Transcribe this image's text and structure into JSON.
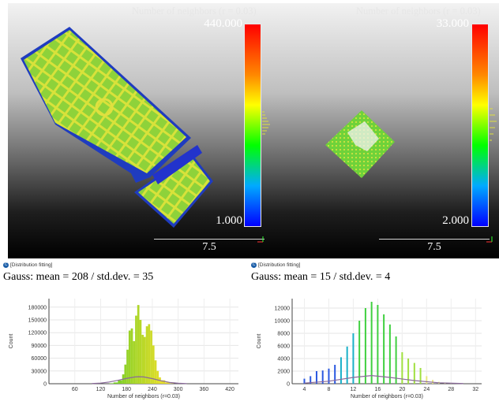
{
  "viewer": {
    "left": {
      "title": "Number of neighbors (r = 0.03)",
      "max_label": "440.000",
      "min_label": "1.000",
      "scale_label": "7.5"
    },
    "right": {
      "title": "Number of neighbors (r = 0.03)",
      "max_label": "33.000",
      "min_label": "2.000",
      "scale_label": "7.5"
    }
  },
  "panels": [
    {
      "header": "[Distribution fitting]",
      "logo_icon": "cloudcompare-logo-icon",
      "gauss_text": "Gauss: mean = 208 / std.dev. = 35"
    },
    {
      "header": "[Distribution fitting]",
      "logo_icon": "cloudcompare-logo-icon",
      "gauss_text": "Gauss: mean = 15 / std.dev. = 4"
    }
  ],
  "chart_data": [
    {
      "type": "area",
      "xlabel": "Number of neighbors (r=0.03)",
      "ylabel": "Count",
      "xlim": [
        0,
        440
      ],
      "ylim": [
        0,
        200000
      ],
      "xticks": [
        "60",
        "120",
        "180",
        "240",
        "300",
        "360",
        "420"
      ],
      "xtick_values": [
        60,
        120,
        180,
        240,
        300,
        360,
        420
      ],
      "yticks": [
        "0",
        "30000",
        "60000",
        "90000",
        "120000",
        "150000",
        "180000"
      ],
      "ytick_values": [
        0,
        30000,
        60000,
        90000,
        120000,
        150000,
        180000
      ],
      "grid": true,
      "series": [
        {
          "x": [
            140,
            150,
            160,
            170,
            175,
            180,
            185,
            190,
            195,
            200,
            205,
            210,
            215,
            220,
            225,
            230,
            235,
            240,
            245,
            250,
            255,
            260,
            270,
            280
          ],
          "values": [
            1000,
            3000,
            8000,
            22000,
            45000,
            80000,
            125000,
            130000,
            100000,
            160000,
            185000,
            150000,
            115000,
            110000,
            135000,
            140000,
            125000,
            90000,
            55000,
            30000,
            15000,
            8000,
            3000,
            500
          ]
        },
        {
          "x": [
            100,
            120,
            140,
            160,
            180,
            200,
            208,
            220,
            240,
            260,
            280,
            300,
            320
          ],
          "values": [
            500,
            1500,
            4000,
            8000,
            12500,
            16000,
            16500,
            16000,
            12000,
            7000,
            3000,
            1200,
            300
          ]
        }
      ]
    },
    {
      "type": "bar",
      "xlabel": "Number of neighbors (r=0.03)",
      "ylabel": "Count",
      "xlim": [
        2,
        33
      ],
      "ylim": [
        0,
        13500
      ],
      "xticks": [
        "4",
        "8",
        "12",
        "16",
        "20",
        "24",
        "28",
        "32"
      ],
      "xtick_values": [
        4,
        8,
        12,
        16,
        20,
        24,
        28,
        32
      ],
      "yticks": [
        "0",
        "2000",
        "4000",
        "6000",
        "8000",
        "10000",
        "12000"
      ],
      "ytick_values": [
        0,
        2000,
        4000,
        6000,
        8000,
        10000,
        12000
      ],
      "grid": true,
      "series": [
        {
          "x": [
            4,
            5,
            6,
            7,
            8,
            9,
            10,
            11,
            12,
            13,
            14,
            15,
            16,
            17,
            18,
            19,
            20,
            21,
            22,
            23,
            24,
            25,
            26,
            27,
            28
          ],
          "values": [
            800,
            1200,
            2000,
            2100,
            2400,
            3000,
            4200,
            5900,
            8000,
            10000,
            12000,
            13000,
            12500,
            11000,
            9400,
            7500,
            5000,
            4000,
            3300,
            2500,
            1200,
            600,
            300,
            100,
            50
          ]
        },
        {
          "x": [
            4,
            8,
            12,
            15,
            18,
            22,
            26,
            30
          ],
          "values": [
            100,
            400,
            1000,
            1300,
            1000,
            500,
            150,
            30
          ]
        }
      ]
    }
  ]
}
